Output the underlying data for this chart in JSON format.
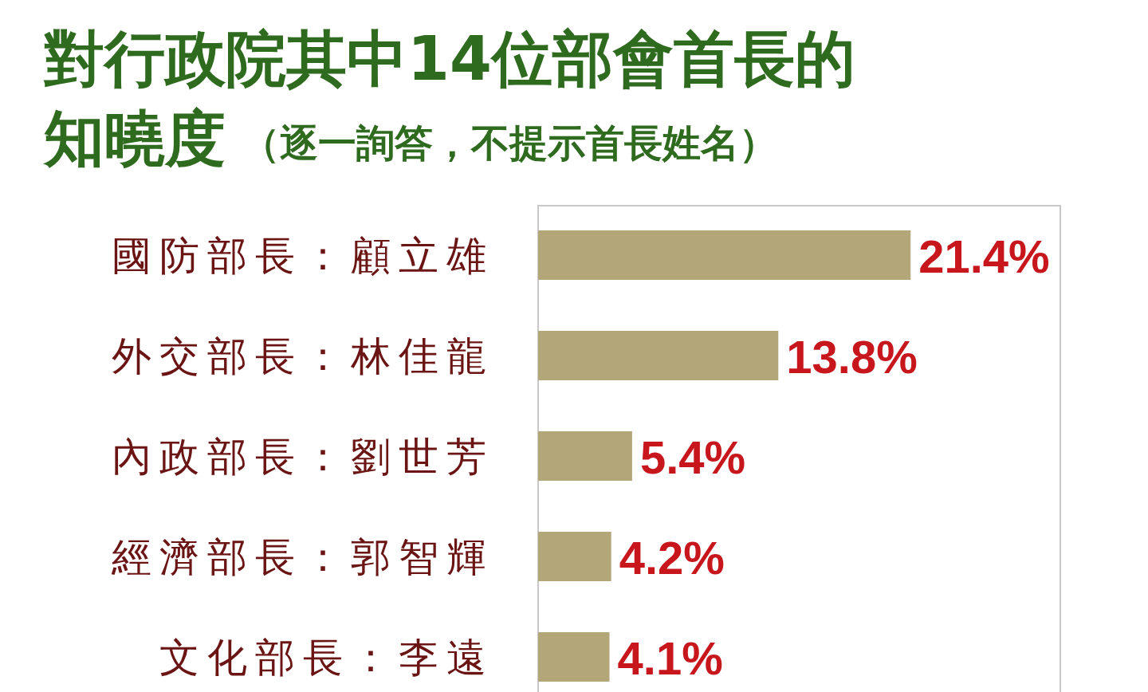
{
  "chart_data": {
    "type": "bar",
    "orientation": "horizontal",
    "title": "對行政院其中14位部會首長的知曉度",
    "subtitle": "（逐一詢答，不提示首長姓名）",
    "categories": [
      "國防部長：顧立雄",
      "外交部長：林佳龍",
      "內政部長：劉世芳",
      "經濟部長：郭智輝",
      "文化部長：李遠"
    ],
    "values": [
      21.4,
      13.8,
      5.4,
      4.2,
      4.1
    ],
    "value_labels": [
      "21.4%",
      "13.8%",
      "5.4%",
      "4.2%",
      "4.1%"
    ],
    "color": "#b3a77a",
    "xlim": [
      0,
      30
    ]
  }
}
